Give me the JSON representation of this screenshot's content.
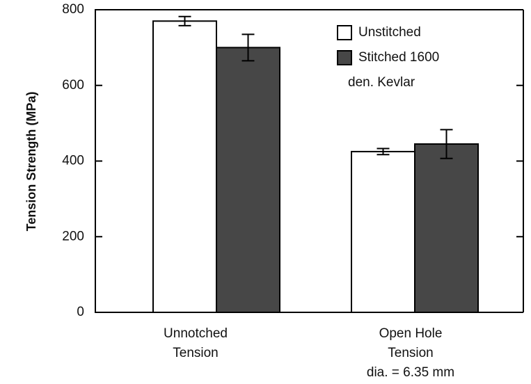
{
  "chart_data": {
    "type": "bar",
    "y_label": "Tension Strength (MPa)",
    "categories": [
      [
        "Unnotched",
        "Tension"
      ],
      [
        "Open Hole",
        "Tension",
        "dia. = 6.35 mm"
      ]
    ],
    "series": [
      {
        "name": [
          "Unstitched"
        ],
        "color": "#ffffff",
        "values": [
          770,
          425
        ],
        "errors": [
          12,
          8
        ]
      },
      {
        "name": [
          "Stitched 1600",
          "den. Kevlar"
        ],
        "color": "#474747",
        "values": [
          700,
          445
        ],
        "errors": [
          35,
          38
        ]
      }
    ],
    "ylim": [
      0,
      800
    ],
    "yticks": [
      0,
      200,
      400,
      600,
      800
    ]
  }
}
